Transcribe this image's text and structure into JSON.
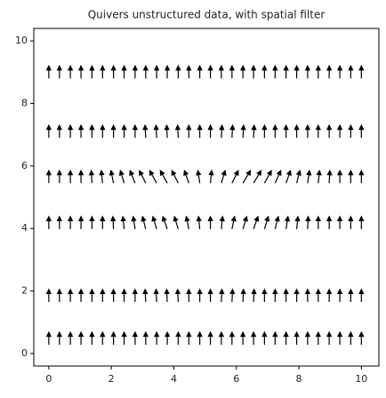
{
  "chart_data": {
    "type": "quiver",
    "title": "Quivers unstructured data, with spatial filter",
    "color": "#000000",
    "xlim": [
      -0.48,
      10.56
    ],
    "ylim": [
      -0.4,
      10.4
    ],
    "xticks": [
      0,
      2,
      4,
      6,
      8,
      10
    ],
    "yticks": [
      0,
      2,
      4,
      6,
      8,
      10
    ],
    "x": [
      0,
      0.34,
      0.69,
      1.03,
      1.38,
      1.72,
      2.07,
      2.41,
      2.76,
      3.1,
      3.45,
      3.79,
      4.14,
      4.48,
      4.83,
      5.17,
      5.52,
      5.86,
      6.21,
      6.55,
      6.9,
      7.24,
      7.59,
      7.93,
      8.28,
      8.62,
      8.97,
      9.31,
      9.66,
      10
    ],
    "rows": [
      {
        "y": 0.28,
        "v": 1,
        "u": [
          0,
          0,
          0,
          0,
          0,
          0,
          0,
          0,
          0,
          0,
          0,
          0,
          0,
          0,
          0,
          0,
          0,
          0,
          0,
          0,
          0,
          0,
          0,
          0,
          0,
          0,
          0,
          0,
          0,
          0
        ]
      },
      {
        "y": 1.65,
        "v": 1,
        "u": [
          0,
          0,
          0,
          0,
          0,
          0,
          0,
          0,
          0,
          -0.05,
          -0.05,
          -0.05,
          -0.05,
          0,
          0,
          0,
          0.05,
          0.05,
          0.05,
          0.05,
          0,
          0,
          0,
          0,
          0,
          0,
          0,
          0,
          0,
          0
        ]
      },
      {
        "y": 3.98,
        "v": 1,
        "u": [
          0,
          0,
          0,
          0,
          0,
          0,
          -0.05,
          -0.1,
          -0.15,
          -0.25,
          -0.3,
          -0.35,
          -0.3,
          -0.2,
          -0.1,
          0,
          0.1,
          0.2,
          0.3,
          0.35,
          0.3,
          0.25,
          0.15,
          0.1,
          0.05,
          0,
          0,
          0,
          0,
          0
        ]
      },
      {
        "y": 5.45,
        "v": 1,
        "u": [
          0,
          0,
          0,
          0,
          -0.05,
          -0.1,
          -0.2,
          -0.3,
          -0.4,
          -0.5,
          -0.55,
          -0.55,
          -0.5,
          -0.35,
          -0.15,
          0.1,
          0.3,
          0.5,
          0.6,
          0.6,
          0.55,
          0.45,
          0.35,
          0.25,
          0.15,
          0.1,
          0.05,
          0,
          0,
          0
        ]
      },
      {
        "y": 6.9,
        "v": 1,
        "u": [
          0,
          0,
          0,
          0,
          0,
          0,
          0,
          0,
          0,
          -0.05,
          -0.05,
          -0.05,
          -0.05,
          0,
          0,
          0,
          0.05,
          0.05,
          0.05,
          0.05,
          0,
          0,
          0,
          0,
          0,
          0,
          0,
          0,
          0,
          0
        ]
      },
      {
        "y": 8.8,
        "v": 1,
        "u": [
          0,
          0,
          0,
          0,
          0,
          0,
          0,
          0,
          0,
          0,
          0,
          0,
          0,
          0,
          0,
          0,
          0,
          0,
          0,
          0,
          0,
          0,
          0,
          0,
          0,
          0,
          0,
          0,
          0,
          0
        ]
      }
    ]
  }
}
